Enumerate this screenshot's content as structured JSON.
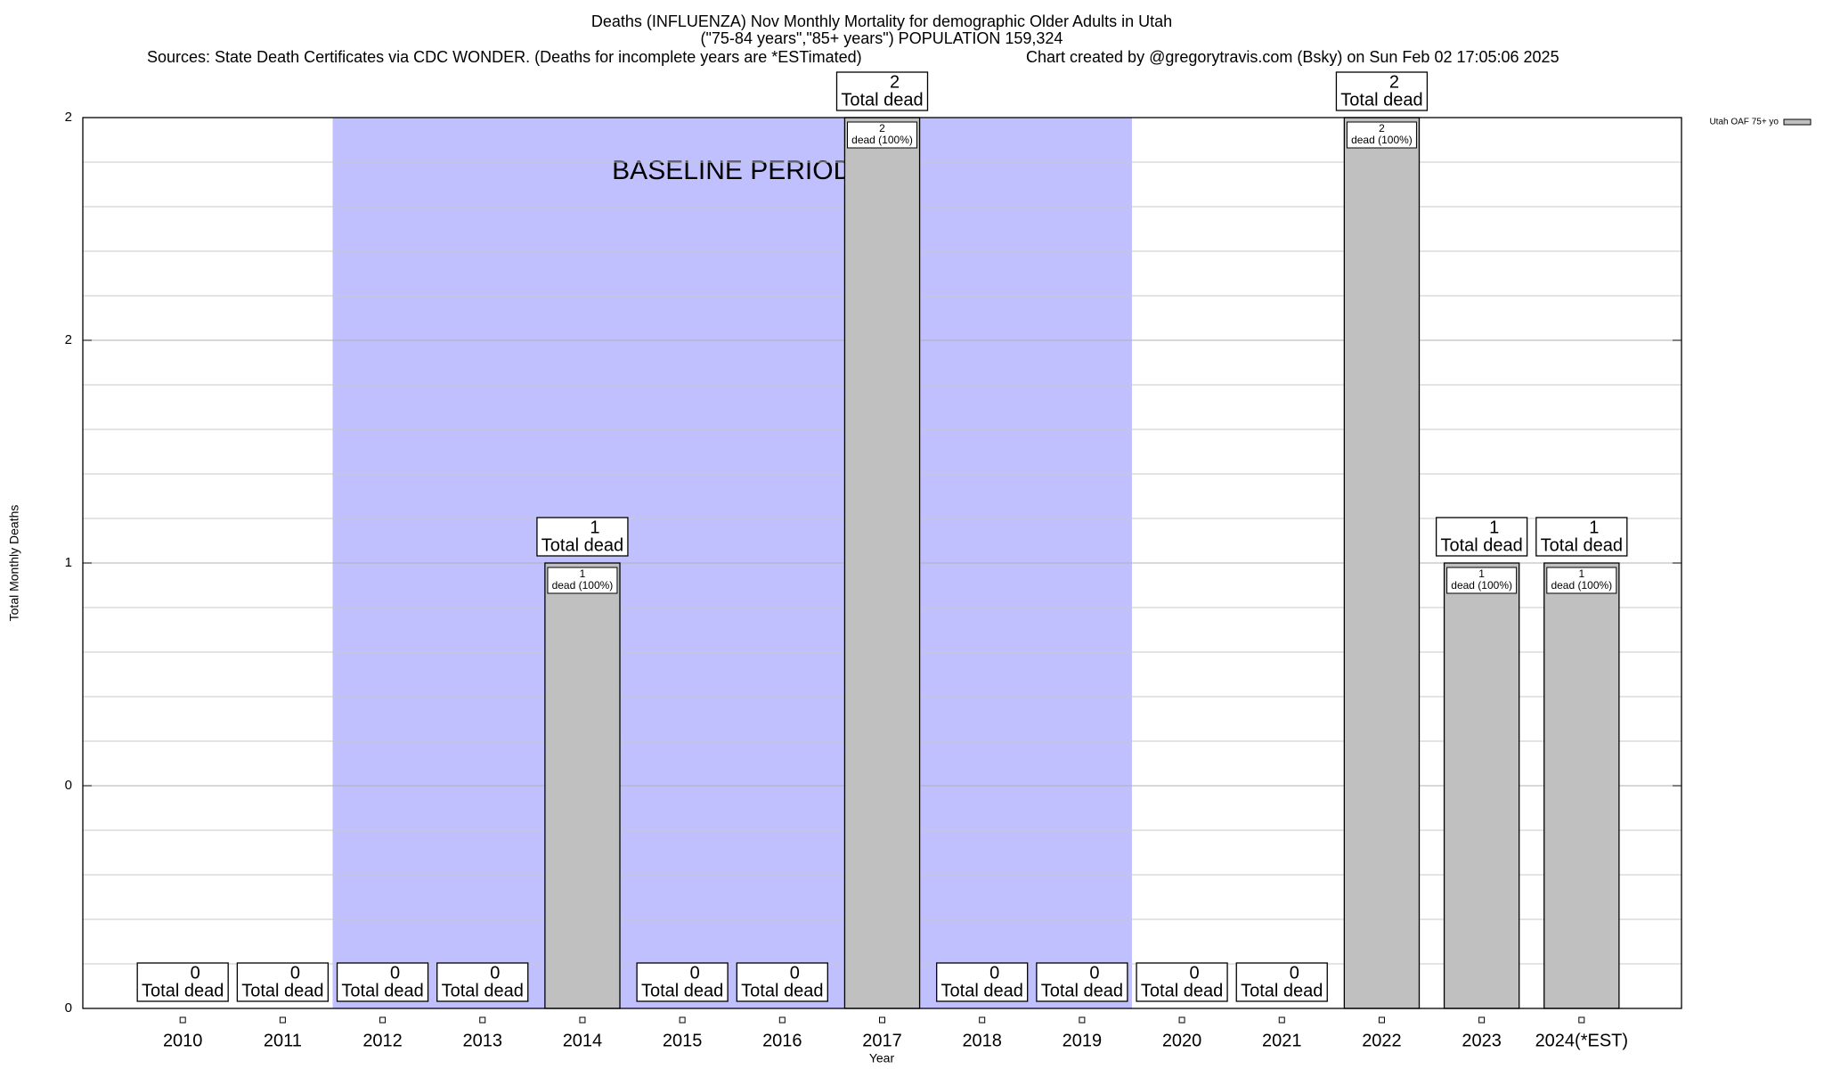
{
  "chart_data": {
    "type": "bar",
    "title": "Deaths (INFLUENZA) Nov Monthly Mortality for demographic Older Adults in Utah",
    "subtitle": "(\"75-84 years\",\"85+ years\") POPULATION 159,324",
    "source": "Sources: State Death Certificates via CDC WONDER. (Deaths for incomplete years are *ESTimated)",
    "credit": "Chart created by @gregorytravis.com (Bsky) on Sun Feb 02 17:05:06 2025",
    "x_label": "Year",
    "y_label": "Total Monthly Deaths",
    "categories": [
      "2010",
      "2011",
      "2012",
      "2013",
      "2014",
      "2015",
      "2016",
      "2017",
      "2018",
      "2019",
      "2020",
      "2021",
      "2022",
      "2023",
      "2024(*EST)"
    ],
    "series": [
      {
        "name": "Utah OAF 75+ yo",
        "color": "#c0c0c0",
        "values": [
          0,
          0,
          0,
          0,
          1,
          0,
          0,
          2,
          0,
          0,
          0,
          0,
          2,
          1,
          1
        ]
      }
    ],
    "total_label": "Total dead",
    "share_label": "dead (100%)",
    "baseline": {
      "label": "BASELINE PERIOD",
      "start": "2012",
      "end": "2019",
      "color": "#c0c0ff"
    },
    "ylim": [
      0,
      2
    ],
    "yticks": [
      0,
      {
        "value": 0.5,
        "label": "0"
      },
      1,
      {
        "value": 1.5,
        "label": "2"
      },
      2
    ],
    "y_minor_ticks": [
      0.1,
      0.2,
      0.3,
      0.4,
      0.6,
      0.7,
      0.8,
      0.9,
      1.1,
      1.2,
      1.3,
      1.4,
      1.6,
      1.7,
      1.8,
      1.9
    ],
    "grid": true,
    "legend": "top-right"
  }
}
